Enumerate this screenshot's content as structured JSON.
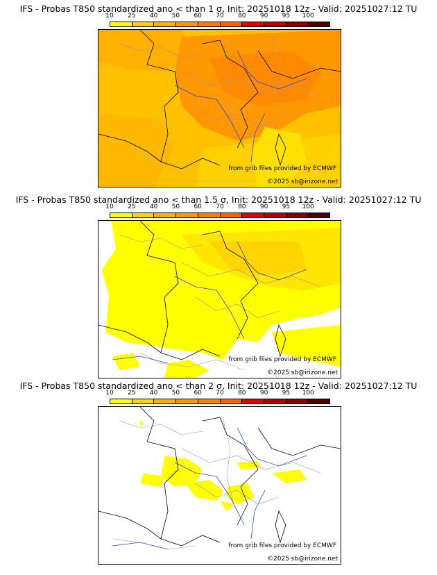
{
  "colorbar": {
    "ticks": [
      "10",
      "25",
      "40",
      "50",
      "60",
      "70",
      "80",
      "90",
      "95",
      "100"
    ],
    "colors": [
      "#ffff00",
      "#ffd400",
      "#ffb000",
      "#ff9800",
      "#ff7e00",
      "#ff6000",
      "#e00000",
      "#b80000",
      "#8a0000",
      "#4a0000"
    ]
  },
  "panels": [
    {
      "title": "IFS - Probas T850  standardized ano < than 1 σ, Init: 20251018 12z - Valid: 20251027:12 TU",
      "credit_source": "from grib files provided by ECMWF",
      "credit_copyright": "©2025 sb@irizone.net"
    },
    {
      "title": "IFS - Probas T850  standardized ano < than 1.5 σ, Init: 20251018 12z - Valid: 20251027:12 TU",
      "credit_source": "from grib files provided by ECMWF",
      "credit_copyright": "©2025 sb@irizone.net"
    },
    {
      "title": "IFS - Probas T850  standardized ano < than 2 σ, Init: 20251018 12z - Valid: 20251027:12 TU",
      "credit_source": "from grib files provided by ECMWF",
      "credit_copyright": "©2025 sb@irizone.net"
    }
  ]
}
